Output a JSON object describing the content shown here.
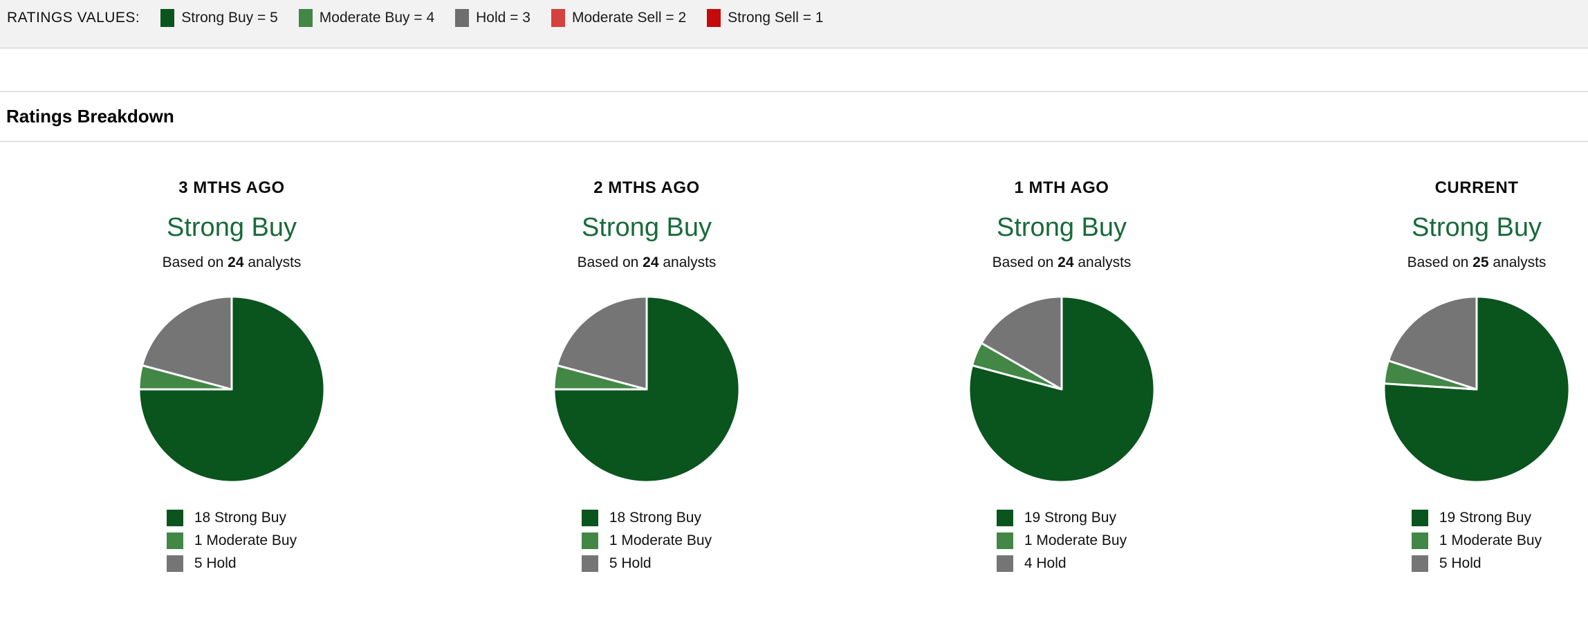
{
  "ratings_values_bar": {
    "label": "RATINGS VALUES:",
    "items": [
      {
        "label": "Strong Buy = 5",
        "color": "#0a541e"
      },
      {
        "label": "Moderate Buy = 4",
        "color": "#428745"
      },
      {
        "label": "Hold = 3",
        "color": "#6e6e6e"
      },
      {
        "label": "Moderate Sell = 2",
        "color": "#d5413e"
      },
      {
        "label": "Strong Sell = 1",
        "color": "#c40a0a"
      }
    ]
  },
  "section": {
    "title": "Ratings Breakdown"
  },
  "colors": {
    "strong_buy": "#0a541e",
    "moderate_buy": "#428745",
    "hold": "#757575",
    "consensus_text": "#186a3a",
    "bar_background": "#f2f2f2",
    "divider": "#cccccc"
  },
  "chart_data": [
    {
      "type": "pie",
      "title": "3 MTHS AGO",
      "consensus": "Strong Buy",
      "total_analysts": 24,
      "labels": [
        "Strong Buy",
        "Moderate Buy",
        "Hold"
      ],
      "values": [
        18,
        1,
        5
      ],
      "colors": [
        "#0a541e",
        "#428745",
        "#757575"
      ],
      "start_angle": "12 o'clock",
      "direction": "clockwise",
      "legend_position": "bottom"
    },
    {
      "type": "pie",
      "title": "2 MTHS AGO",
      "consensus": "Strong Buy",
      "total_analysts": 24,
      "labels": [
        "Strong Buy",
        "Moderate Buy",
        "Hold"
      ],
      "values": [
        18,
        1,
        5
      ],
      "colors": [
        "#0a541e",
        "#428745",
        "#757575"
      ],
      "start_angle": "12 o'clock",
      "direction": "clockwise",
      "legend_position": "bottom"
    },
    {
      "type": "pie",
      "title": "1 MTH AGO",
      "consensus": "Strong Buy",
      "total_analysts": 24,
      "labels": [
        "Strong Buy",
        "Moderate Buy",
        "Hold"
      ],
      "values": [
        19,
        1,
        4
      ],
      "colors": [
        "#0a541e",
        "#428745",
        "#757575"
      ],
      "start_angle": "12 o'clock",
      "direction": "clockwise",
      "legend_position": "bottom"
    },
    {
      "type": "pie",
      "title": "CURRENT",
      "consensus": "Strong Buy",
      "total_analysts": 25,
      "labels": [
        "Strong Buy",
        "Moderate Buy",
        "Hold"
      ],
      "values": [
        19,
        1,
        5
      ],
      "colors": [
        "#0a541e",
        "#428745",
        "#757575"
      ],
      "start_angle": "12 o'clock",
      "direction": "clockwise",
      "legend_position": "bottom"
    }
  ],
  "panels": [
    {
      "period": "3 MTHS AGO",
      "consensus": "Strong Buy",
      "based_on_prefix": "Based on",
      "analyst_count": "24",
      "based_on_suffix": "analysts",
      "legend": [
        {
          "label": "18 Strong Buy",
          "color": "#0a541e"
        },
        {
          "label": "1 Moderate Buy",
          "color": "#428745"
        },
        {
          "label": "5 Hold",
          "color": "#757575"
        }
      ]
    },
    {
      "period": "2 MTHS AGO",
      "consensus": "Strong Buy",
      "based_on_prefix": "Based on",
      "analyst_count": "24",
      "based_on_suffix": "analysts",
      "legend": [
        {
          "label": "18 Strong Buy",
          "color": "#0a541e"
        },
        {
          "label": "1 Moderate Buy",
          "color": "#428745"
        },
        {
          "label": "5 Hold",
          "color": "#757575"
        }
      ]
    },
    {
      "period": "1 MTH AGO",
      "consensus": "Strong Buy",
      "based_on_prefix": "Based on",
      "analyst_count": "24",
      "based_on_suffix": "analysts",
      "legend": [
        {
          "label": "19 Strong Buy",
          "color": "#0a541e"
        },
        {
          "label": "1 Moderate Buy",
          "color": "#428745"
        },
        {
          "label": "4 Hold",
          "color": "#757575"
        }
      ]
    },
    {
      "period": "CURRENT",
      "consensus": "Strong Buy",
      "based_on_prefix": "Based on",
      "analyst_count": "25",
      "based_on_suffix": "analysts",
      "legend": [
        {
          "label": "19 Strong Buy",
          "color": "#0a541e"
        },
        {
          "label": "1 Moderate Buy",
          "color": "#428745"
        },
        {
          "label": "5 Hold",
          "color": "#757575"
        }
      ]
    }
  ]
}
